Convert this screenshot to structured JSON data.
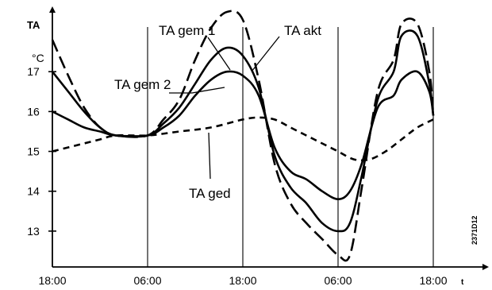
{
  "chart_data": {
    "type": "line",
    "ylabel": "TA",
    "yunit": "°C",
    "xlabel": "t",
    "figure_code": "2371D12",
    "x_ticks": [
      "18:00",
      "06:00",
      "18:00",
      "06:00",
      "18:00"
    ],
    "x_tick_hours": [
      0,
      12,
      24,
      36,
      48
    ],
    "y_ticks": [
      13,
      14,
      15,
      16,
      17
    ],
    "ylim": [
      12.1,
      18.4
    ],
    "xlim": [
      0,
      50
    ],
    "grid": "vertical lines at tick positions",
    "legend": "inline annotations",
    "series": [
      {
        "name": "TA akt",
        "style": "long-dash",
        "x": [
          0,
          2,
          4,
          6,
          8,
          12,
          14,
          16,
          18,
          20,
          22,
          24,
          26,
          28,
          30,
          32,
          34,
          36,
          37.5,
          39,
          41,
          43,
          44,
          46,
          47.5,
          48
        ],
        "y": [
          17.8,
          16.9,
          16.1,
          15.6,
          15.4,
          15.4,
          15.8,
          16.3,
          17.3,
          18.1,
          18.5,
          18.3,
          16.8,
          14.7,
          13.7,
          13.2,
          12.8,
          12.4,
          12.4,
          14.1,
          16.5,
          17.3,
          18.2,
          18.2,
          17.0,
          15.9
        ]
      },
      {
        "name": "TA gem 1",
        "style": "solid",
        "x": [
          0,
          2,
          4,
          6,
          8,
          12,
          14,
          16,
          18,
          20,
          22,
          24,
          26,
          28,
          30,
          32,
          34,
          36,
          37.5,
          39,
          41,
          43,
          44,
          46,
          47.5,
          48
        ],
        "y": [
          17.0,
          16.5,
          16.0,
          15.6,
          15.4,
          15.4,
          15.7,
          16.1,
          16.7,
          17.3,
          17.6,
          17.4,
          16.6,
          14.9,
          14.1,
          13.7,
          13.2,
          13.0,
          13.2,
          14.4,
          16.3,
          17.0,
          17.9,
          17.9,
          16.7,
          15.9
        ]
      },
      {
        "name": "TA gem 2",
        "style": "solid",
        "x": [
          0,
          2,
          4,
          6,
          8,
          12,
          14,
          16,
          18,
          20,
          22,
          24,
          26,
          28,
          30,
          32,
          34,
          36,
          37.5,
          39,
          41,
          43,
          44,
          46,
          47.5,
          48
        ],
        "y": [
          16.0,
          15.8,
          15.6,
          15.5,
          15.4,
          15.4,
          15.6,
          15.9,
          16.4,
          16.8,
          17.0,
          16.9,
          16.4,
          15.1,
          14.5,
          14.3,
          14.0,
          13.8,
          14.0,
          14.7,
          16.1,
          16.4,
          16.8,
          17.0,
          16.5,
          15.9
        ]
      },
      {
        "name": "TA ged",
        "style": "short-dash",
        "x": [
          0,
          2,
          4,
          6,
          8,
          12,
          16,
          20,
          24,
          26,
          28,
          30,
          32,
          34,
          36,
          38,
          40,
          42,
          44,
          46,
          48
        ],
        "y": [
          15.0,
          15.1,
          15.2,
          15.3,
          15.4,
          15.4,
          15.5,
          15.6,
          15.8,
          15.85,
          15.8,
          15.6,
          15.4,
          15.2,
          15.0,
          14.8,
          14.8,
          15.0,
          15.3,
          15.6,
          15.8
        ]
      }
    ]
  }
}
